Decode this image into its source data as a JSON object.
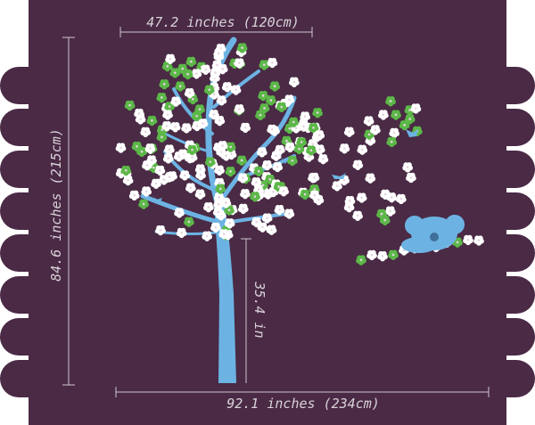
{
  "dimensions": {
    "top_width": "47.2 inches (120cm)",
    "height": "84.6 inches (215cm)",
    "trunk_height": "35.4 in",
    "total_width": "92.1 inches (234cm)"
  }
}
